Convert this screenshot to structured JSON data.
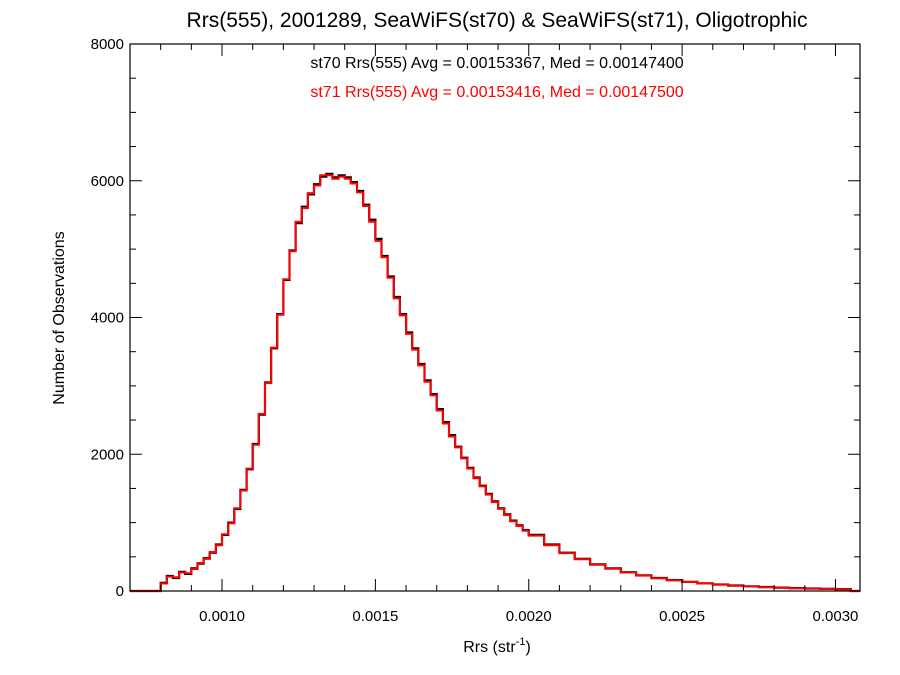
{
  "chart_data": {
    "type": "line",
    "step": true,
    "title": "Rrs(555), 2001289, SeaWiFS(st70) & SeaWiFS(st71), Oligotrophic",
    "xlabel_main": "Rrs (str",
    "xlabel_sup": "-1",
    "xlabel_close": ")",
    "ylabel": "Number of Observations",
    "xlim": [
      0.0007,
      0.00308
    ],
    "ylim": [
      0,
      8000
    ],
    "grid": false,
    "x_ticks": [
      {
        "v": 0.001,
        "label": "0.0010"
      },
      {
        "v": 0.0015,
        "label": "0.0015"
      },
      {
        "v": 0.002,
        "label": "0.0020"
      },
      {
        "v": 0.0025,
        "label": "0.0025"
      },
      {
        "v": 0.003,
        "label": "0.0030"
      }
    ],
    "y_ticks": [
      {
        "v": 0,
        "label": "0"
      },
      {
        "v": 2000,
        "label": "2000"
      },
      {
        "v": 4000,
        "label": "4000"
      },
      {
        "v": 6000,
        "label": "6000"
      },
      {
        "v": 8000,
        "label": "8000"
      }
    ],
    "annotations": [
      {
        "text": "st70 Rrs(555) Avg = 0.00153367, Med = 0.00147400",
        "color": "#000000"
      },
      {
        "text": "st71 Rrs(555) Avg = 0.00153416, Med = 0.00147500",
        "color": "#ff0000"
      }
    ],
    "series": [
      {
        "color": "#000000",
        "x": [
          0.0007,
          0.00078,
          0.0008,
          0.00082,
          0.00084,
          0.00086,
          0.00088,
          0.0009,
          0.00092,
          0.00094,
          0.00096,
          0.00098,
          0.001,
          0.00102,
          0.00104,
          0.00106,
          0.00108,
          0.0011,
          0.00112,
          0.00114,
          0.00116,
          0.00118,
          0.0012,
          0.00122,
          0.00124,
          0.00126,
          0.00128,
          0.0013,
          0.00132,
          0.00134,
          0.00136,
          0.00138,
          0.0014,
          0.00142,
          0.00144,
          0.00146,
          0.00148,
          0.0015,
          0.00152,
          0.00154,
          0.00156,
          0.00158,
          0.0016,
          0.00162,
          0.00164,
          0.00166,
          0.00168,
          0.0017,
          0.00172,
          0.00174,
          0.00176,
          0.00178,
          0.0018,
          0.00182,
          0.00184,
          0.00186,
          0.00188,
          0.0019,
          0.00192,
          0.00194,
          0.00196,
          0.00198,
          0.002,
          0.00205,
          0.0021,
          0.00215,
          0.0022,
          0.00225,
          0.0023,
          0.00235,
          0.0024,
          0.00245,
          0.0025,
          0.00255,
          0.0026,
          0.00265,
          0.0027,
          0.00275,
          0.0028,
          0.00285,
          0.0029,
          0.00295,
          0.003,
          0.00305
        ],
        "y": [
          0,
          0,
          120,
          220,
          190,
          280,
          250,
          330,
          400,
          480,
          560,
          680,
          820,
          1000,
          1200,
          1480,
          1780,
          2150,
          2580,
          3050,
          3550,
          4050,
          4550,
          4980,
          5380,
          5620,
          5800,
          5950,
          6060,
          6100,
          6050,
          6080,
          6050,
          5980,
          5850,
          5650,
          5430,
          5150,
          4900,
          4600,
          4300,
          4050,
          3780,
          3550,
          3320,
          3080,
          2880,
          2660,
          2470,
          2280,
          2110,
          1950,
          1800,
          1660,
          1540,
          1420,
          1310,
          1210,
          1120,
          1030,
          960,
          890,
          820,
          680,
          560,
          470,
          390,
          330,
          275,
          230,
          190,
          160,
          135,
          112,
          95,
          80,
          68,
          58,
          50,
          43,
          37,
          32,
          28,
          0
        ]
      },
      {
        "color": "#ff0000",
        "x": [
          0.0007,
          0.00078,
          0.0008,
          0.00082,
          0.00084,
          0.00086,
          0.00088,
          0.0009,
          0.00092,
          0.00094,
          0.00096,
          0.00098,
          0.001,
          0.00102,
          0.00104,
          0.00106,
          0.00108,
          0.0011,
          0.00112,
          0.00114,
          0.00116,
          0.00118,
          0.0012,
          0.00122,
          0.00124,
          0.00126,
          0.00128,
          0.0013,
          0.00132,
          0.00134,
          0.00136,
          0.00138,
          0.0014,
          0.00142,
          0.00144,
          0.00146,
          0.00148,
          0.0015,
          0.00152,
          0.00154,
          0.00156,
          0.00158,
          0.0016,
          0.00162,
          0.00164,
          0.00166,
          0.00168,
          0.0017,
          0.00172,
          0.00174,
          0.00176,
          0.00178,
          0.0018,
          0.00182,
          0.00184,
          0.00186,
          0.00188,
          0.0019,
          0.00192,
          0.00194,
          0.00196,
          0.00198,
          0.002,
          0.00205,
          0.0021,
          0.00215,
          0.0022,
          0.00225,
          0.0023,
          0.00235,
          0.0024,
          0.00245,
          0.0025,
          0.00255,
          0.0026,
          0.00265,
          0.0027,
          0.00275,
          0.0028,
          0.00285,
          0.0029,
          0.00295,
          0.003,
          0.00305
        ],
        "y": [
          0,
          0,
          110,
          210,
          200,
          270,
          260,
          320,
          410,
          470,
          570,
          670,
          830,
          990,
          1210,
          1470,
          1790,
          2140,
          2590,
          3040,
          3560,
          4040,
          4560,
          4970,
          5400,
          5600,
          5820,
          5930,
          6080,
          6080,
          6030,
          6060,
          6030,
          5960,
          5830,
          5630,
          5400,
          5120,
          4880,
          4580,
          4280,
          4030,
          3760,
          3530,
          3300,
          3060,
          2860,
          2640,
          2450,
          2260,
          2100,
          1940,
          1790,
          1650,
          1530,
          1410,
          1300,
          1200,
          1110,
          1020,
          950,
          880,
          810,
          670,
          555,
          465,
          385,
          325,
          270,
          225,
          186,
          157,
          132,
          110,
          93,
          78,
          66,
          56,
          48,
          41,
          35,
          30,
          26,
          0
        ]
      }
    ]
  }
}
